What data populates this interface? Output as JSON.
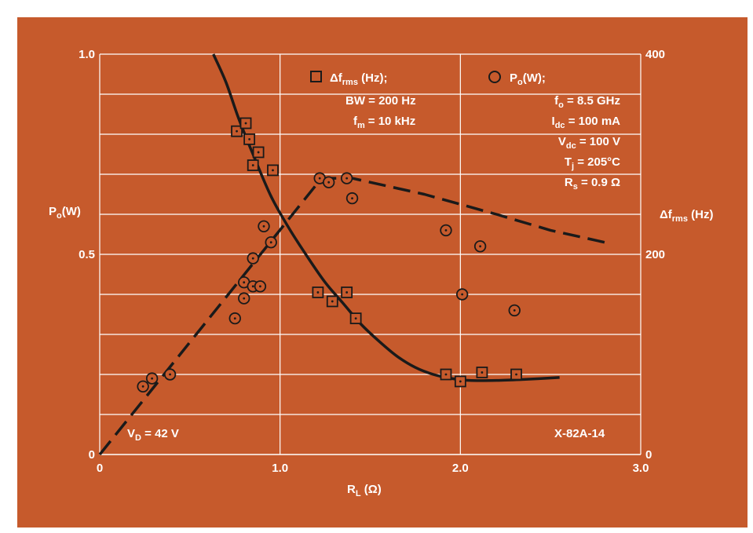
{
  "chart_data": {
    "type": "scatter",
    "title": "",
    "xlabel": "R",
    "xlabel_sub": "L",
    "xlabel_unit": " (Ω)",
    "ylabel": "P",
    "ylabel_sub": "o",
    "ylabel_unit": "(W)",
    "y2label": "Δf",
    "y2label_sub": "rms",
    "y2label_unit": " (Hz)",
    "xlim": [
      0,
      3.0
    ],
    "ylim": [
      0,
      1.0
    ],
    "y2lim": [
      0,
      400
    ],
    "grid": true,
    "x_ticks": [
      {
        "value": 0,
        "label": "0"
      },
      {
        "value": 1.0,
        "label": "1.0"
      },
      {
        "value": 2.0,
        "label": "2.0"
      },
      {
        "value": 3.0,
        "label": "3.0"
      }
    ],
    "y_ticks": [
      {
        "value": 0,
        "label": "0"
      },
      {
        "value": 0.5,
        "label": "0.5"
      },
      {
        "value": 1.0,
        "label": "1.0"
      }
    ],
    "y2_ticks": [
      {
        "value": 0,
        "label": "0"
      },
      {
        "value": 200,
        "label": "200"
      },
      {
        "value": 400,
        "label": "400"
      }
    ],
    "series": [
      {
        "marker": "square",
        "axis": "right",
        "points": [
          [
            0.76,
            323
          ],
          [
            0.81,
            331
          ],
          [
            0.83,
            315
          ],
          [
            0.88,
            302
          ],
          [
            0.85,
            289
          ],
          [
            0.96,
            284
          ],
          [
            1.21,
            162
          ],
          [
            1.29,
            153
          ],
          [
            1.37,
            162
          ],
          [
            1.42,
            136
          ],
          [
            1.92,
            80
          ],
          [
            2.0,
            73
          ],
          [
            2.12,
            82
          ],
          [
            2.31,
            80
          ]
        ]
      },
      {
        "marker": "circle",
        "axis": "left",
        "points": [
          [
            0.24,
            0.17
          ],
          [
            0.29,
            0.19
          ],
          [
            0.39,
            0.2
          ],
          [
            0.75,
            0.34
          ],
          [
            0.8,
            0.39
          ],
          [
            0.8,
            0.43
          ],
          [
            0.85,
            0.42
          ],
          [
            0.89,
            0.42
          ],
          [
            0.85,
            0.49
          ],
          [
            0.95,
            0.53
          ],
          [
            0.91,
            0.57
          ],
          [
            1.22,
            0.69
          ],
          [
            1.27,
            0.68
          ],
          [
            1.37,
            0.69
          ],
          [
            1.4,
            0.64
          ],
          [
            1.92,
            0.56
          ],
          [
            2.01,
            0.4
          ],
          [
            2.11,
            0.52
          ],
          [
            2.3,
            0.36
          ]
        ]
      },
      {
        "style": "solid",
        "axis": "right",
        "curve": [
          [
            0.63,
            400
          ],
          [
            0.7,
            372
          ],
          [
            0.77,
            336
          ],
          [
            0.85,
            300
          ],
          [
            0.95,
            258
          ],
          [
            1.05,
            226
          ],
          [
            1.15,
            198
          ],
          [
            1.25,
            172
          ],
          [
            1.35,
            151
          ],
          [
            1.45,
            130
          ],
          [
            1.55,
            113
          ],
          [
            1.65,
            98
          ],
          [
            1.75,
            87
          ],
          [
            1.85,
            80
          ],
          [
            1.95,
            76
          ],
          [
            2.05,
            74
          ],
          [
            2.2,
            74
          ],
          [
            2.35,
            75
          ],
          [
            2.55,
            77
          ]
        ]
      },
      {
        "style": "dashed",
        "axis": "left",
        "curve": [
          [
            0.0,
            0.0
          ],
          [
            1.23,
            0.69
          ],
          [
            1.4,
            0.69
          ],
          [
            1.8,
            0.65
          ],
          [
            2.2,
            0.6
          ],
          [
            2.5,
            0.56
          ],
          [
            2.8,
            0.53
          ]
        ]
      }
    ],
    "annotations": {
      "vd": "V",
      "vd_sub": "D",
      "vd_value": " = 42 V",
      "figure_id": "X-82A-14"
    },
    "legend": {
      "square": {
        "label": "Δf",
        "label_sub": "rms",
        "label_unit": " (Hz);",
        "lines": [
          "BW = 200 Hz",
          "= 10 kHz"
        ],
        "fm": "f",
        "fm_sub": "m"
      },
      "circle": {
        "label": "P",
        "label_sub": "o",
        "label_unit": "(W);",
        "params": [
          {
            "sym": "f",
            "sub": "o",
            "val": " = 8.5 GHz"
          },
          {
            "sym": "I",
            "sub": "dc",
            "val": " = 100 mA"
          },
          {
            "sym": "V",
            "sub": "dc",
            "val": " = 100 V"
          },
          {
            "sym": "T",
            "sub": "j",
            "val": " = 205°C"
          },
          {
            "sym": "R",
            "sub": "s",
            "val": " = 0.9 Ω"
          }
        ]
      }
    }
  }
}
